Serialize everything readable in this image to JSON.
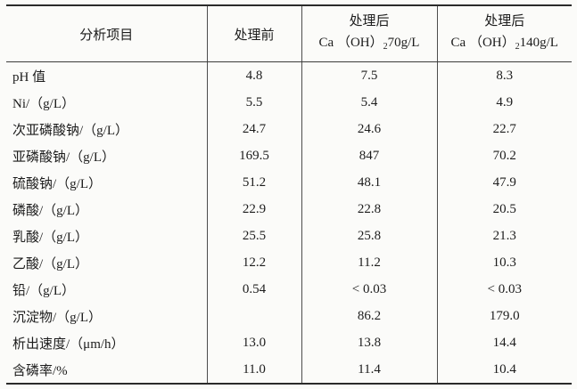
{
  "table": {
    "columns": [
      {
        "label": "分析项目"
      },
      {
        "label": "处理前"
      },
      {
        "line1": "处理后",
        "formula": {
          "pre": "Ca （OH）",
          "sub": "2",
          "post": "70g/L"
        }
      },
      {
        "line1": "处理后",
        "formula": {
          "pre": "Ca （OH）",
          "sub": "2",
          "post": "140g/L"
        }
      }
    ],
    "rows": [
      {
        "label": "pH 值",
        "before": "4.8",
        "after70": "7.5",
        "after140": "8.3"
      },
      {
        "label": "Ni/（g/L）",
        "before": "5.5",
        "after70": "5.4",
        "after140": "4.9"
      },
      {
        "label": "次亚磷酸钠/（g/L）",
        "before": "24.7",
        "after70": "24.6",
        "after140": "22.7"
      },
      {
        "label": "亚磷酸钠/（g/L）",
        "before": "169.5",
        "after70": "847",
        "after140": "70.2"
      },
      {
        "label": "硫酸钠/（g/L）",
        "before": "51.2",
        "after70": "48.1",
        "after140": "47.9"
      },
      {
        "label": "磷酸/（g/L）",
        "before": "22.9",
        "after70": "22.8",
        "after140": "20.5"
      },
      {
        "label": "乳酸/（g/L）",
        "before": "25.5",
        "after70": "25.8",
        "after140": "21.3"
      },
      {
        "label": "乙酸/（g/L）",
        "before": "12.2",
        "after70": "11.2",
        "after140": "10.3"
      },
      {
        "label": "铅/（g/L）",
        "before": "0.54",
        "after70": "< 0.03",
        "after140": "< 0.03"
      },
      {
        "label": "沉淀物/（g/L）",
        "before": "",
        "after70": "86.2",
        "after140": "179.0"
      },
      {
        "label": "析出速度/（μm/h）",
        "before": "13.0",
        "after70": "13.8",
        "after140": "14.4"
      },
      {
        "label": "含磷率/%",
        "before": "11.0",
        "after70": "11.4",
        "after140": "10.4"
      }
    ]
  }
}
